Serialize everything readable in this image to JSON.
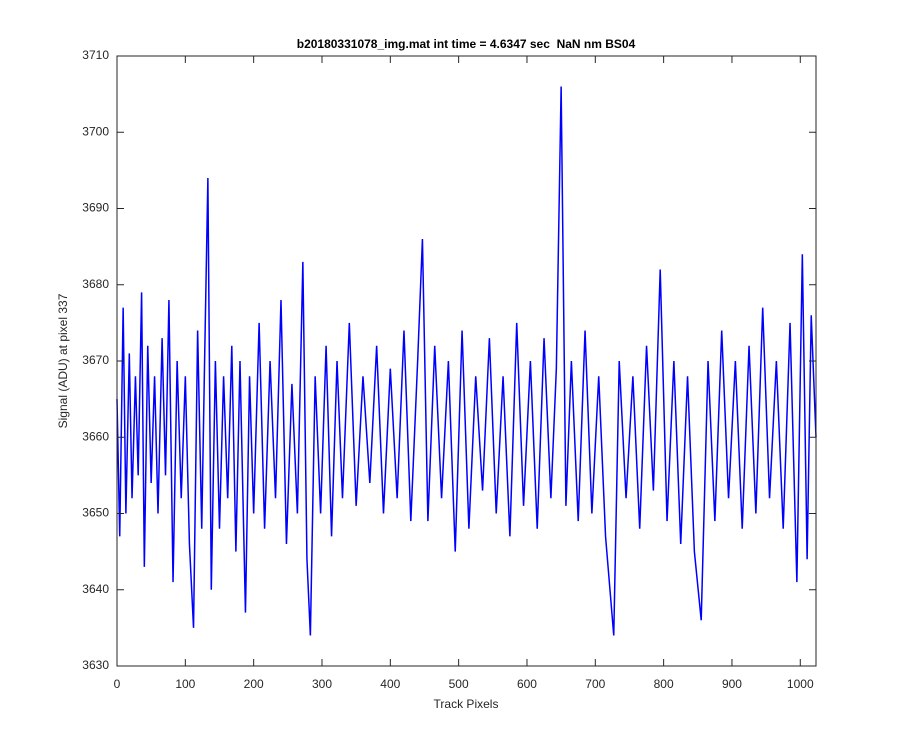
{
  "chart_data": {
    "type": "line",
    "title": "b20180331078_img.mat int time = 4.6347 sec  NaN nm BS04",
    "x_label": "Track Pixels",
    "y_label": "Signal (ADU) at pixel 337",
    "xlim": [
      0,
      1023
    ],
    "ylim": [
      3630,
      3710
    ],
    "xticks": [
      0,
      100,
      200,
      300,
      400,
      500,
      600,
      700,
      800,
      900,
      1000
    ],
    "yticks": [
      3630,
      3640,
      3650,
      3660,
      3670,
      3680,
      3690,
      3700,
      3710
    ],
    "x": [
      0,
      4,
      9,
      13,
      18,
      22,
      27,
      31,
      36,
      40,
      45,
      50,
      55,
      60,
      66,
      71,
      76,
      82,
      88,
      94,
      100,
      106,
      112,
      118,
      124,
      128,
      133,
      138,
      144,
      150,
      156,
      162,
      168,
      174,
      180,
      188,
      194,
      200,
      208,
      216,
      224,
      232,
      240,
      248,
      256,
      264,
      272,
      278,
      283,
      290,
      298,
      306,
      314,
      322,
      330,
      340,
      350,
      360,
      370,
      380,
      390,
      400,
      410,
      420,
      430,
      440,
      447,
      455,
      465,
      475,
      485,
      495,
      505,
      515,
      525,
      535,
      545,
      555,
      565,
      575,
      585,
      595,
      605,
      615,
      625,
      635,
      643,
      650,
      657,
      665,
      675,
      685,
      695,
      705,
      715,
      727,
      735,
      745,
      755,
      765,
      775,
      785,
      795,
      805,
      815,
      825,
      835,
      845,
      855,
      865,
      875,
      885,
      895,
      905,
      915,
      925,
      935,
      945,
      955,
      965,
      975,
      985,
      995,
      1003,
      1010,
      1016,
      1023
    ],
    "series": [
      {
        "color": "#0000ff",
        "values": [
          3665,
          3647,
          3677,
          3650,
          3671,
          3652,
          3668,
          3655,
          3679,
          3643,
          3672,
          3654,
          3668,
          3650,
          3673,
          3655,
          3678,
          3641,
          3670,
          3652,
          3668,
          3646,
          3635,
          3674,
          3648,
          3669,
          3694,
          3640,
          3670,
          3648,
          3668,
          3652,
          3672,
          3645,
          3670,
          3637,
          3668,
          3650,
          3675,
          3648,
          3670,
          3652,
          3678,
          3646,
          3667,
          3650,
          3683,
          3644,
          3634,
          3668,
          3650,
          3672,
          3647,
          3670,
          3652,
          3675,
          3651,
          3668,
          3654,
          3672,
          3650,
          3669,
          3652,
          3674,
          3649,
          3670,
          3686,
          3649,
          3672,
          3652,
          3670,
          3645,
          3674,
          3648,
          3668,
          3653,
          3673,
          3650,
          3668,
          3647,
          3675,
          3651,
          3670,
          3648,
          3673,
          3652,
          3669,
          3706,
          3651,
          3670,
          3649,
          3674,
          3650,
          3668,
          3647,
          3634,
          3670,
          3652,
          3668,
          3648,
          3672,
          3653,
          3682,
          3649,
          3670,
          3646,
          3668,
          3645,
          3636,
          3670,
          3649,
          3674,
          3652,
          3670,
          3648,
          3672,
          3650,
          3677,
          3652,
          3670,
          3648,
          3675,
          3641,
          3684,
          3644,
          3676,
          3660
        ]
      }
    ]
  }
}
